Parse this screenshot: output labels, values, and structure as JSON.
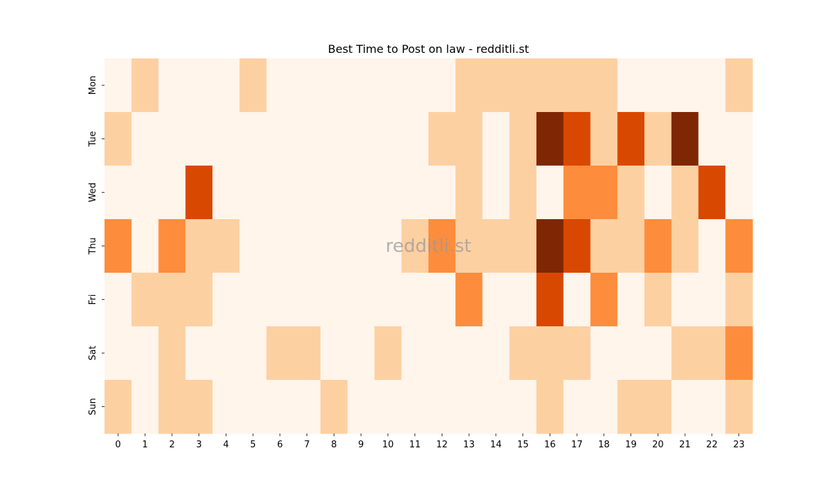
{
  "chart_data": {
    "type": "heatmap",
    "title": "Best Time to Post on law - redditli.st",
    "watermark": "redditli.st",
    "x_categories": [
      "0",
      "1",
      "2",
      "3",
      "4",
      "5",
      "6",
      "7",
      "8",
      "9",
      "10",
      "11",
      "12",
      "13",
      "14",
      "15",
      "16",
      "17",
      "18",
      "19",
      "20",
      "21",
      "22",
      "23"
    ],
    "y_categories": [
      "Mon",
      "Tue",
      "Wed",
      "Thu",
      "Fri",
      "Sat",
      "Sun"
    ],
    "values": [
      [
        0,
        1,
        0,
        0,
        0,
        1,
        0,
        0,
        0,
        0,
        0,
        0,
        0,
        1,
        1,
        1,
        1,
        1,
        1,
        0,
        0,
        0,
        0,
        1
      ],
      [
        1,
        0,
        0,
        0,
        0,
        0,
        0,
        0,
        0,
        0,
        0,
        0,
        1,
        1,
        0,
        1,
        4,
        3,
        1,
        3,
        1,
        4,
        0,
        0
      ],
      [
        0,
        0,
        0,
        3,
        0,
        0,
        0,
        0,
        0,
        0,
        0,
        0,
        0,
        1,
        0,
        1,
        0,
        2,
        2,
        1,
        0,
        1,
        3,
        0
      ],
      [
        2,
        0,
        2,
        1,
        1,
        0,
        0,
        0,
        0,
        0,
        0,
        1,
        2,
        1,
        1,
        1,
        4,
        3,
        1,
        1,
        2,
        1,
        0,
        2
      ],
      [
        0,
        1,
        1,
        1,
        0,
        0,
        0,
        0,
        0,
        0,
        0,
        0,
        0,
        2,
        0,
        0,
        3,
        0,
        2,
        0,
        1,
        0,
        0,
        1
      ],
      [
        0,
        0,
        1,
        0,
        0,
        0,
        1,
        1,
        0,
        0,
        1,
        0,
        0,
        0,
        0,
        1,
        1,
        1,
        0,
        0,
        0,
        1,
        1,
        2
      ],
      [
        1,
        0,
        1,
        1,
        0,
        0,
        0,
        0,
        1,
        0,
        0,
        0,
        0,
        0,
        0,
        0,
        1,
        0,
        0,
        1,
        1,
        0,
        0,
        1
      ]
    ],
    "value_range": [
      0,
      4
    ],
    "colormap": [
      "#fff5eb",
      "#fdd0a2",
      "#fd8d3c",
      "#d94801",
      "#7f2704"
    ],
    "legend": "none",
    "grid": false
  }
}
